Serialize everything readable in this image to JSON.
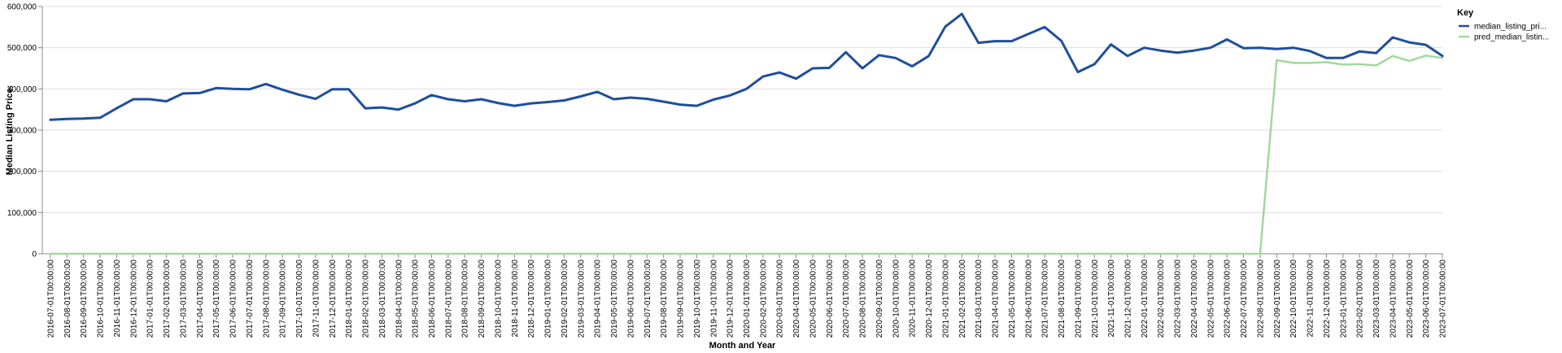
{
  "chart_data": {
    "type": "line",
    "xlabel": "Month and Year",
    "ylabel": "Median Listing Price:",
    "ylim": [
      0,
      600000
    ],
    "y_ticks": [
      "0",
      "100,000",
      "200,000",
      "300,000",
      "400,000",
      "500,000",
      "600,000"
    ],
    "grid": true,
    "legend": {
      "title": "Key",
      "position": "top-right"
    },
    "x": [
      "2016-07-01T00:00:00",
      "2016-08-01T00:00:00",
      "2016-09-01T00:00:00",
      "2016-10-01T00:00:00",
      "2016-11-01T00:00:00",
      "2016-12-01T00:00:00",
      "2017-01-01T00:00:00",
      "2017-02-01T00:00:00",
      "2017-03-01T00:00:00",
      "2017-04-01T00:00:00",
      "2017-05-01T00:00:00",
      "2017-06-01T00:00:00",
      "2017-07-01T00:00:00",
      "2017-08-01T00:00:00",
      "2017-09-01T00:00:00",
      "2017-10-01T00:00:00",
      "2017-11-01T00:00:00",
      "2017-12-01T00:00:00",
      "2018-01-01T00:00:00",
      "2018-02-01T00:00:00",
      "2018-03-01T00:00:00",
      "2018-04-01T00:00:00",
      "2018-05-01T00:00:00",
      "2018-06-01T00:00:00",
      "2018-07-01T00:00:00",
      "2018-08-01T00:00:00",
      "2018-09-01T00:00:00",
      "2018-10-01T00:00:00",
      "2018-11-01T00:00:00",
      "2018-12-01T00:00:00",
      "2019-01-01T00:00:00",
      "2019-02-01T00:00:00",
      "2019-03-01T00:00:00",
      "2019-04-01T00:00:00",
      "2019-05-01T00:00:00",
      "2019-06-01T00:00:00",
      "2019-07-01T00:00:00",
      "2019-08-01T00:00:00",
      "2019-09-01T00:00:00",
      "2019-10-01T00:00:00",
      "2019-11-01T00:00:00",
      "2019-12-01T00:00:00",
      "2020-01-01T00:00:00",
      "2020-02-01T00:00:00",
      "2020-03-01T00:00:00",
      "2020-04-01T00:00:00",
      "2020-05-01T00:00:00",
      "2020-06-01T00:00:00",
      "2020-07-01T00:00:00",
      "2020-08-01T00:00:00",
      "2020-09-01T00:00:00",
      "2020-10-01T00:00:00",
      "2020-11-01T00:00:00",
      "2020-12-01T00:00:00",
      "2021-01-01T00:00:00",
      "2021-02-01T00:00:00",
      "2021-03-01T00:00:00",
      "2021-04-01T00:00:00",
      "2021-05-01T00:00:00",
      "2021-06-01T00:00:00",
      "2021-07-01T00:00:00",
      "2021-08-01T00:00:00",
      "2021-09-01T00:00:00",
      "2021-10-01T00:00:00",
      "2021-11-01T00:00:00",
      "2021-12-01T00:00:00",
      "2022-01-01T00:00:00",
      "2022-02-01T00:00:00",
      "2022-03-01T00:00:00",
      "2022-04-01T00:00:00",
      "2022-05-01T00:00:00",
      "2022-06-01T00:00:00",
      "2022-07-01T00:00:00",
      "2022-08-01T00:00:00",
      "2022-09-01T00:00:00",
      "2022-10-01T00:00:00",
      "2022-11-01T00:00:00",
      "2022-12-01T00:00:00",
      "2023-01-01T00:00:00",
      "2023-02-01T00:00:00",
      "2023-03-01T00:00:00",
      "2023-04-01T00:00:00",
      "2023-05-01T00:00:00",
      "2023-06-01T00:00:00",
      "2023-07-01T00:00:00"
    ],
    "series": [
      {
        "name": "median_listing_pri...",
        "color": "#1f4e9c",
        "values": [
          325000,
          327000,
          328000,
          330000,
          353000,
          375000,
          375000,
          370000,
          389000,
          390000,
          402000,
          400000,
          399000,
          412000,
          398000,
          386000,
          376000,
          399000,
          399000,
          353000,
          355000,
          350000,
          365000,
          385000,
          375000,
          370000,
          375000,
          366000,
          359000,
          365000,
          368000,
          372000,
          382000,
          393000,
          375000,
          379000,
          376000,
          369000,
          362000,
          359000,
          374000,
          384000,
          400000,
          430000,
          440000,
          425000,
          450000,
          451000,
          489000,
          450000,
          482000,
          475000,
          455000,
          480000,
          551000,
          582000,
          512000,
          516000,
          516000,
          533000,
          550000,
          517000,
          441000,
          460000,
          508000,
          480000,
          500000,
          493000,
          488000,
          493000,
          500000,
          520000,
          499000,
          500000,
          497000,
          500000,
          492000,
          475000,
          475000,
          491000,
          487000,
          525000,
          513000,
          507000,
          480000
        ]
      },
      {
        "name": "pred_median_listin...",
        "color": "#a1d99b",
        "values": [
          0,
          0,
          0,
          0,
          0,
          0,
          0,
          0,
          0,
          0,
          0,
          0,
          0,
          0,
          0,
          0,
          0,
          0,
          0,
          0,
          0,
          0,
          0,
          0,
          0,
          0,
          0,
          0,
          0,
          0,
          0,
          0,
          0,
          0,
          0,
          0,
          0,
          0,
          0,
          0,
          0,
          0,
          0,
          0,
          0,
          0,
          0,
          0,
          0,
          0,
          0,
          0,
          0,
          0,
          0,
          0,
          0,
          0,
          0,
          0,
          0,
          0,
          0,
          0,
          0,
          0,
          0,
          0,
          0,
          0,
          0,
          0,
          0,
          0,
          470000,
          463000,
          463000,
          465000,
          459000,
          460000,
          457000,
          480000,
          468000,
          481000,
          475000
        ]
      }
    ]
  }
}
